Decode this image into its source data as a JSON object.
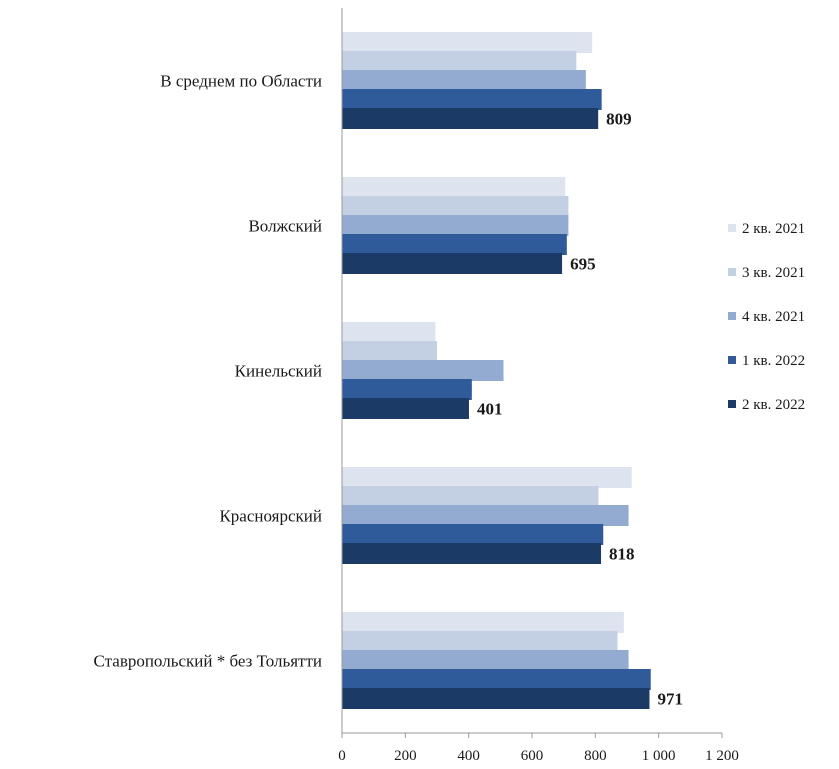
{
  "chart_data": {
    "type": "bar",
    "orientation": "horizontal",
    "categories": [
      "В среднем по Области",
      "Волжский",
      "Кинельский",
      "Красноярский",
      "Ставропольский * без Тольятти"
    ],
    "series": [
      {
        "name": "2 кв. 2021",
        "color": "#dde4ef",
        "values": [
          790,
          705,
          295,
          915,
          890
        ]
      },
      {
        "name": "3 кв. 2021",
        "color": "#c3cfe2",
        "values": [
          740,
          715,
          300,
          810,
          870
        ]
      },
      {
        "name": "4 кв. 2021",
        "color": "#93abd0",
        "values": [
          770,
          715,
          510,
          905,
          905
        ]
      },
      {
        "name": "1 кв. 2022",
        "color": "#2f5b9a",
        "values": [
          820,
          710,
          410,
          825,
          975
        ]
      },
      {
        "name": "2 кв. 2022",
        "color": "#1c3a66",
        "values": [
          809,
          695,
          401,
          818,
          971
        ]
      }
    ],
    "data_labels": [
      "809",
      "695",
      "401",
      "818",
      "971"
    ],
    "xlim": [
      0,
      1200
    ],
    "xticks": [
      0,
      200,
      400,
      600,
      800,
      1000,
      1200
    ],
    "xtick_labels": [
      "0",
      "200",
      "400",
      "600",
      "800",
      "1 000",
      "1 200"
    ],
    "grid": false,
    "legend_position": "right",
    "title": "",
    "xlabel": "",
    "ylabel": ""
  }
}
